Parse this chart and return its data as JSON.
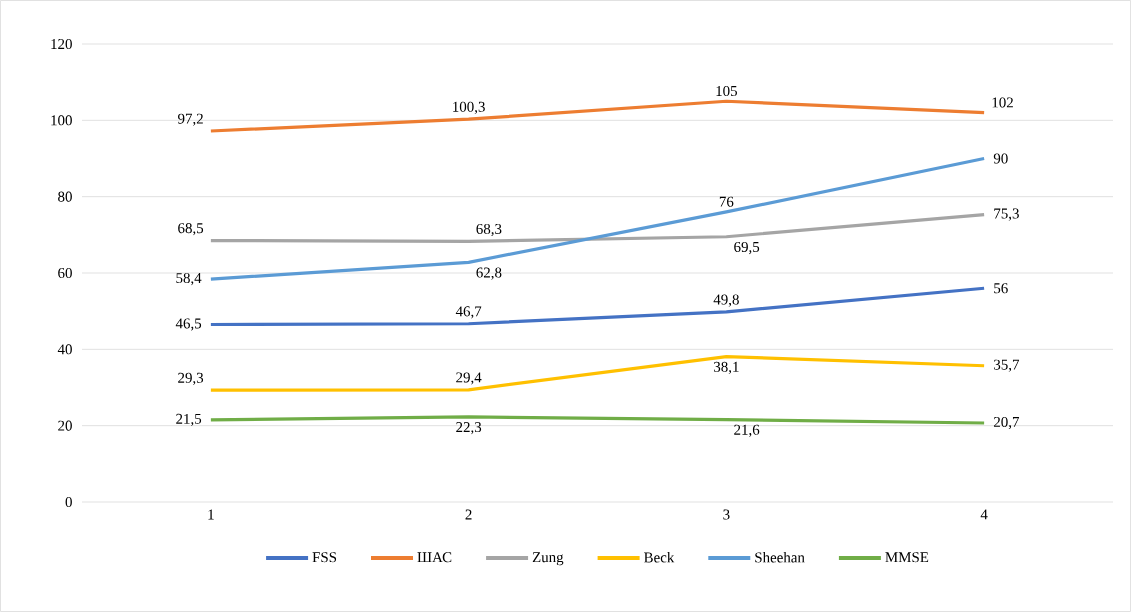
{
  "chart_data": {
    "type": "line",
    "categories": [
      "1",
      "2",
      "3",
      "4"
    ],
    "series": [
      {
        "name": "FSS",
        "color": "#4472c4",
        "values": [
          46.5,
          46.7,
          49.8,
          56
        ],
        "value_labels": [
          "46,5",
          "46,7",
          "49,8",
          "56"
        ]
      },
      {
        "name": "ШАС",
        "color": "#ed7d31",
        "values": [
          97.2,
          100.3,
          105,
          102
        ],
        "value_labels": [
          "97,2",
          "100,3",
          "105",
          "102"
        ]
      },
      {
        "name": "Zung",
        "color": "#a5a5a5",
        "values": [
          68.5,
          68.3,
          69.5,
          75.3
        ],
        "value_labels": [
          "68,5",
          "68,3",
          "69,5",
          "75,3"
        ]
      },
      {
        "name": "Beck",
        "color": "#ffc000",
        "values": [
          29.3,
          29.4,
          38.1,
          35.7
        ],
        "value_labels": [
          "29,3",
          "29,4",
          "38,1",
          "35,7"
        ]
      },
      {
        "name": "Sheehan",
        "color": "#5b9bd5",
        "values": [
          58.4,
          62.8,
          76,
          90
        ],
        "value_labels": [
          "58,4",
          "62,8",
          "76",
          "90"
        ]
      },
      {
        "name": "MMSE",
        "color": "#70ad47",
        "values": [
          21.5,
          22.3,
          21.6,
          20.7
        ],
        "value_labels": [
          "21,5",
          "22,3",
          "21,6",
          "20,7"
        ]
      }
    ],
    "ylim": [
      0,
      120
    ],
    "yticks": [
      0,
      20,
      40,
      60,
      80,
      100,
      120
    ],
    "grid": "y",
    "legend": "bottom",
    "marker": "none",
    "line_style": "solid"
  }
}
